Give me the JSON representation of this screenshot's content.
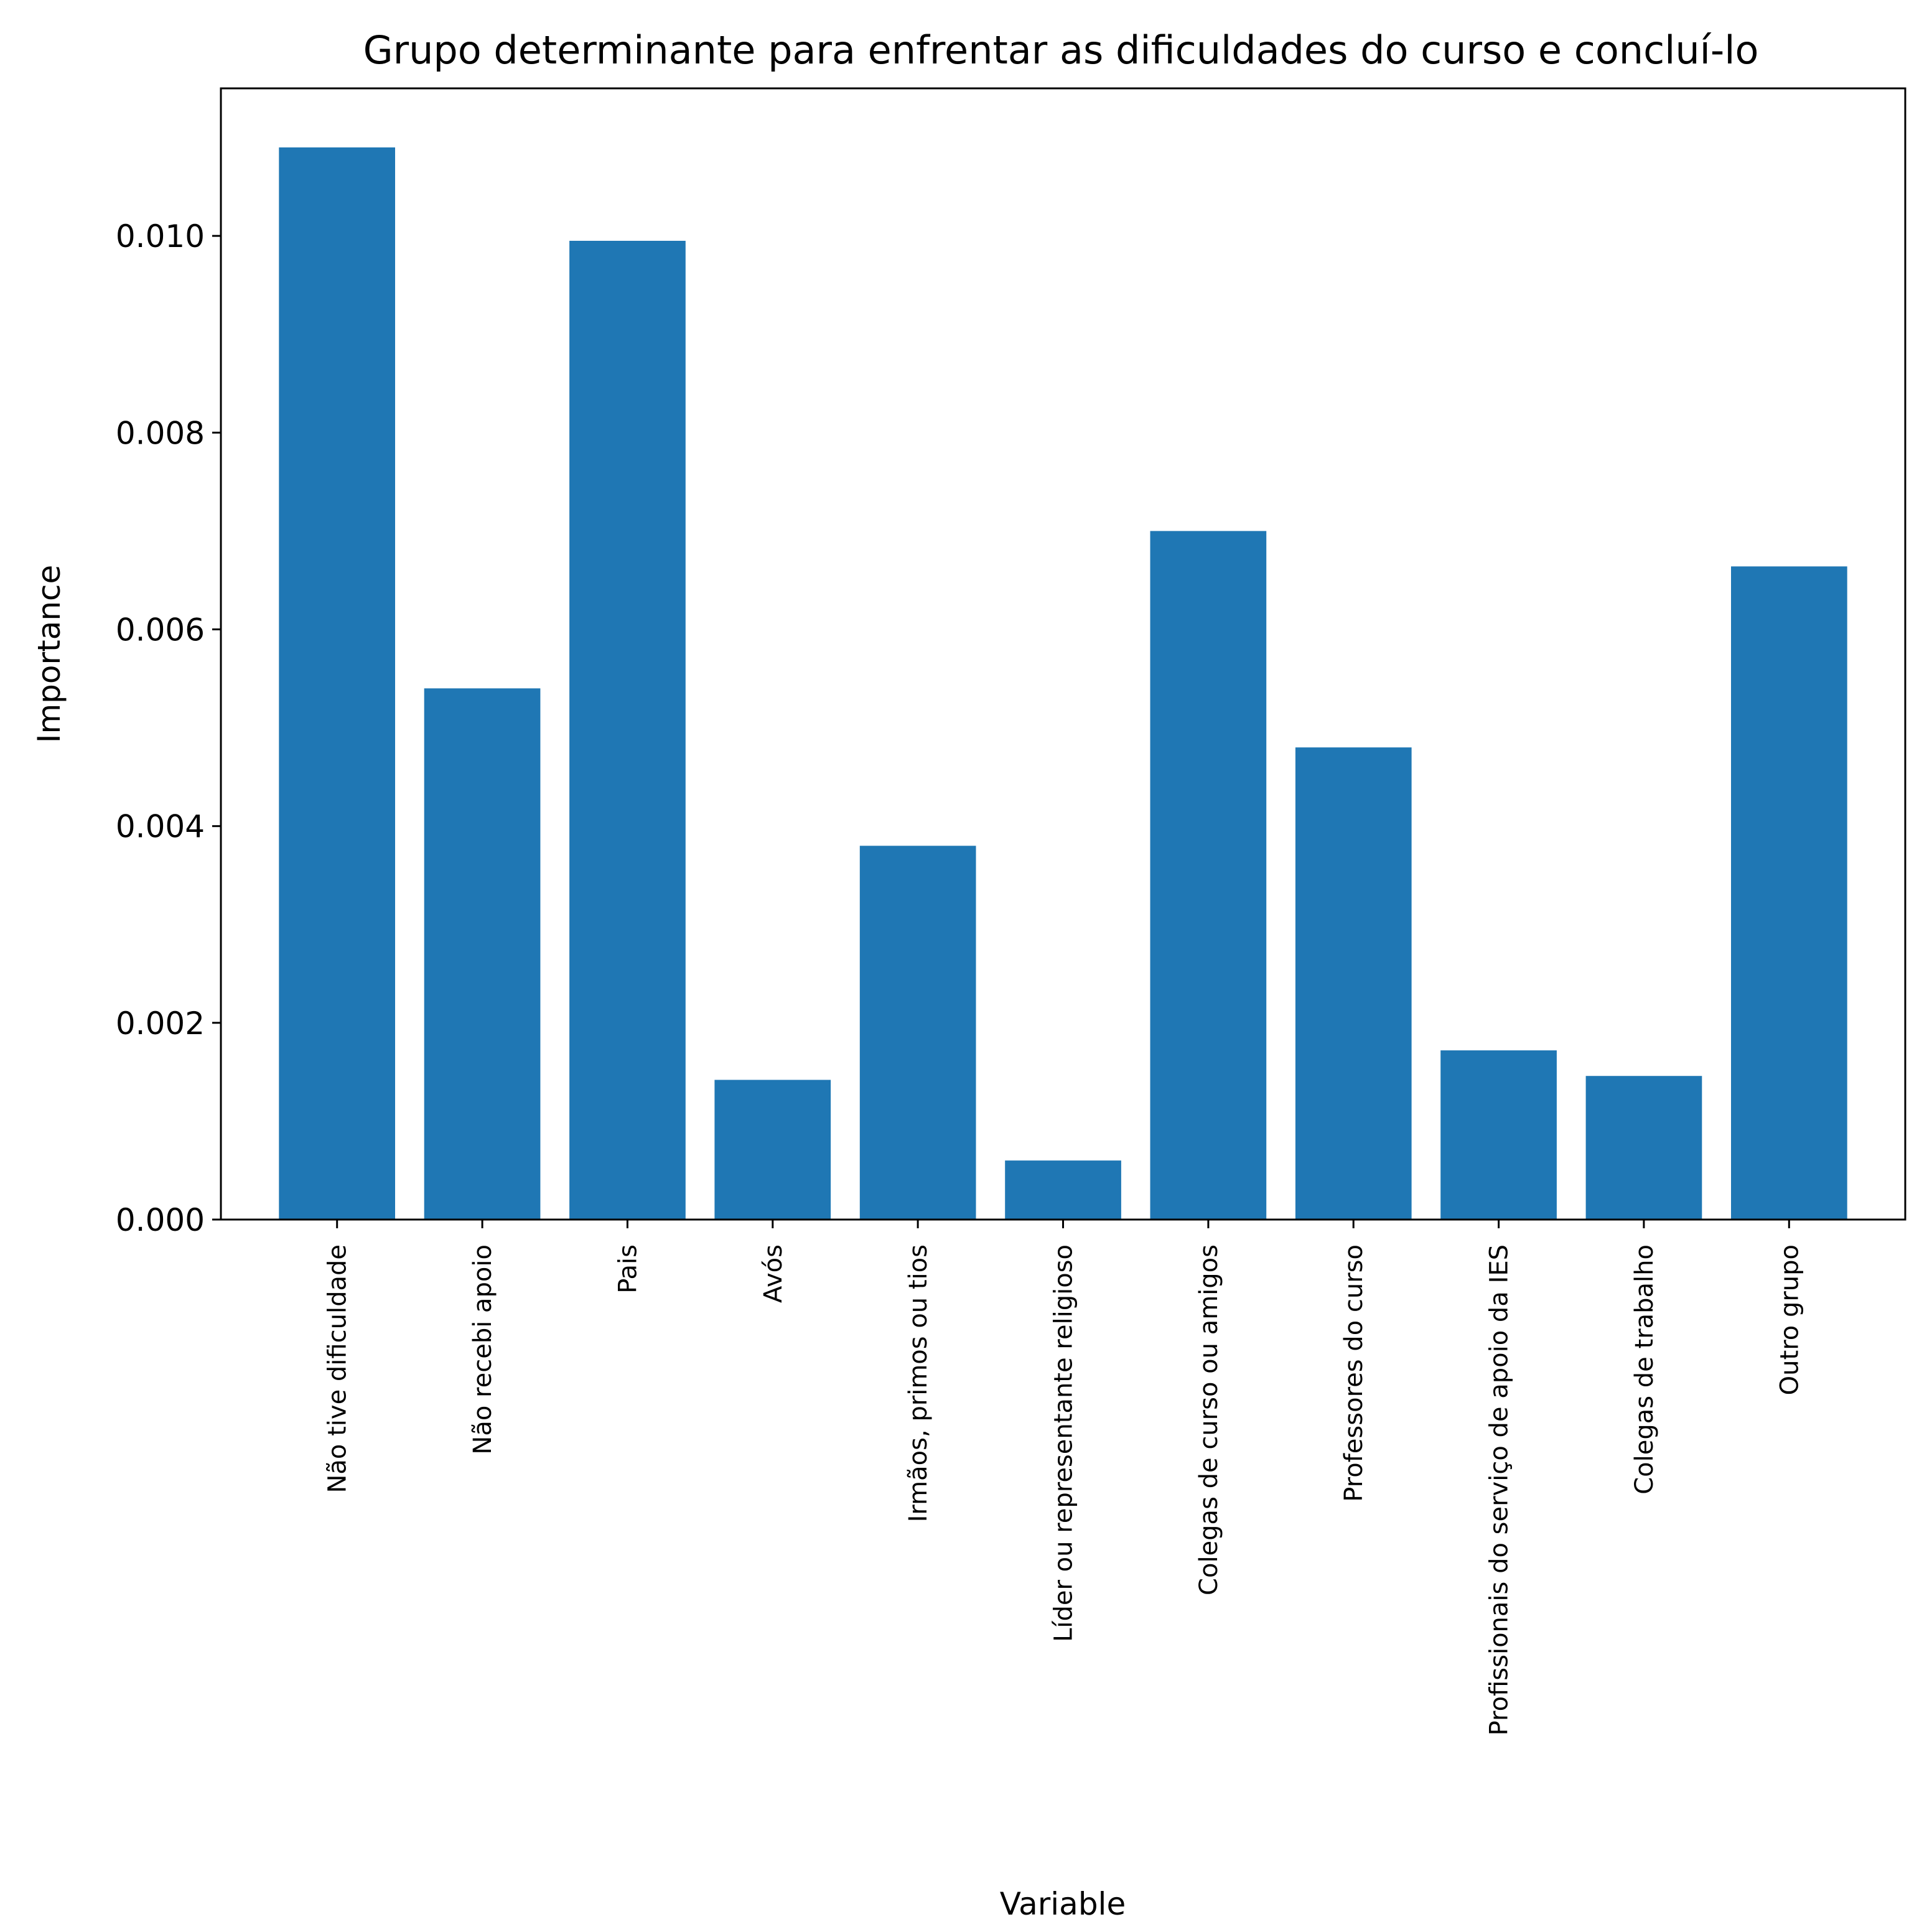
{
  "chart_data": {
    "type": "bar",
    "title": "Grupo determinante para enfrentar as dificuldades do curso e concluí-lo",
    "xlabel": "Variable",
    "ylabel": "Importance",
    "ylim": [
      0,
      0.0115
    ],
    "yticks": [
      "0.000",
      "0.002",
      "0.004",
      "0.006",
      "0.008",
      "0.010"
    ],
    "categories": [
      "Não tive dificuldade",
      "Não recebi apoio",
      "Pais",
      "Avós",
      "Irmãos, primos ou tios",
      "Líder ou representante religioso",
      "Colegas de curso ou amigos",
      "Professores do curso",
      "Profissionais do serviço de apoio da IES",
      "Colegas de trabalho",
      "Outro grupo"
    ],
    "values": [
      0.0109,
      0.0054,
      0.00995,
      0.00142,
      0.0038,
      0.0006,
      0.007,
      0.0048,
      0.00172,
      0.00146,
      0.00664
    ],
    "bar_color": "#1f77b4",
    "grid": false,
    "legend": "none"
  }
}
